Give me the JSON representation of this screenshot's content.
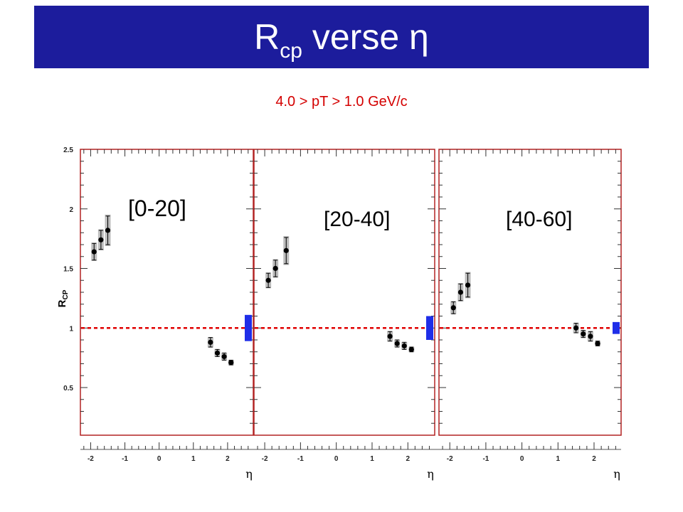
{
  "title": {
    "main": "R",
    "sub": "cp",
    "rest": " verse η"
  },
  "subtitle": "4.0 > pT > 1.0 GeV/c",
  "colors": {
    "title_bg": "#1c1c9c",
    "subtitle": "#d40000",
    "frame": "#b22222",
    "reference_line": "#e00000",
    "norm_box": "#1f2ee8",
    "points": "#000000",
    "sys_band": "#bdbdbd"
  },
  "chart_data": {
    "type": "scatter",
    "ylabel_main": "R",
    "ylabel_sub": "CP",
    "xlabel": "η",
    "ylim": [
      0.1,
      2.5
    ],
    "xlim": [
      -2.3,
      2.75
    ],
    "y_ticks": [
      "0.5",
      "1",
      "1.5",
      "2",
      "2.5"
    ],
    "x_ticks": [
      "-2",
      "-1",
      "0",
      "1",
      "2"
    ],
    "reference_line": 1.0,
    "panels": [
      {
        "label": "[0-20]",
        "norm_uncertainty": [
          0.89,
          1.11
        ],
        "points": [
          {
            "x": -1.9,
            "y": 1.64,
            "err": 0.07
          },
          {
            "x": -1.7,
            "y": 1.74,
            "err": 0.08
          },
          {
            "x": -1.5,
            "y": 1.82,
            "err": 0.12
          },
          {
            "x": 1.5,
            "y": 0.88,
            "err": 0.04
          },
          {
            "x": 1.7,
            "y": 0.79,
            "err": 0.03
          },
          {
            "x": 1.9,
            "y": 0.76,
            "err": 0.03
          },
          {
            "x": 2.1,
            "y": 0.71,
            "err": 0.02
          }
        ]
      },
      {
        "label": "[20-40]",
        "norm_uncertainty": [
          0.9,
          1.1
        ],
        "points": [
          {
            "x": -1.9,
            "y": 1.4,
            "err": 0.06
          },
          {
            "x": -1.7,
            "y": 1.5,
            "err": 0.07
          },
          {
            "x": -1.4,
            "y": 1.65,
            "err": 0.11
          },
          {
            "x": 1.5,
            "y": 0.93,
            "err": 0.04
          },
          {
            "x": 1.7,
            "y": 0.87,
            "err": 0.03
          },
          {
            "x": 1.9,
            "y": 0.85,
            "err": 0.03
          },
          {
            "x": 2.1,
            "y": 0.82,
            "err": 0.02
          }
        ]
      },
      {
        "label": "[40-60]",
        "norm_uncertainty": [
          0.95,
          1.05
        ],
        "points": [
          {
            "x": -1.9,
            "y": 1.17,
            "err": 0.05
          },
          {
            "x": -1.7,
            "y": 1.3,
            "err": 0.07
          },
          {
            "x": -1.5,
            "y": 1.36,
            "err": 0.1
          },
          {
            "x": 1.5,
            "y": 1.0,
            "err": 0.04
          },
          {
            "x": 1.7,
            "y": 0.95,
            "err": 0.03
          },
          {
            "x": 1.9,
            "y": 0.93,
            "err": 0.04
          },
          {
            "x": 2.1,
            "y": 0.87,
            "err": 0.02
          }
        ]
      }
    ]
  }
}
